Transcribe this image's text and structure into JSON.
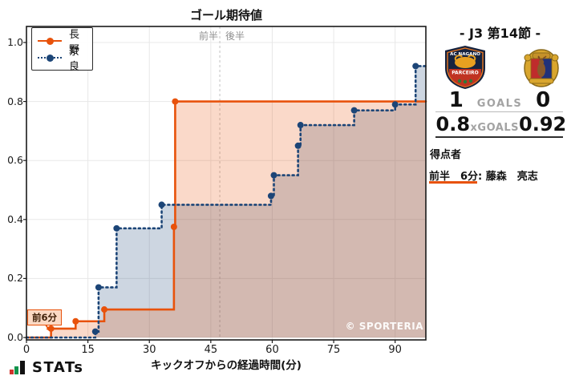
{
  "chart": {
    "title": "ゴール期待値",
    "x_label": "キックオフからの経過時間(分)",
    "half_labels": {
      "first": "前半",
      "second": "後半"
    },
    "annotation_label": "前6分",
    "watermark": "© SPORTERIA"
  },
  "chart_data": {
    "type": "line",
    "subtype": "step-after-cumulative-xg",
    "title": "ゴール期待値",
    "xlabel": "キックオフからの経過時間(分)",
    "ylabel": "",
    "xlim": [
      0,
      97.5
    ],
    "ylim": [
      0,
      1.05
    ],
    "x_ticks": [
      0,
      15,
      30,
      45,
      60,
      75,
      90
    ],
    "y_ticks": [
      0,
      0.2,
      0.4,
      0.6,
      0.8,
      1.0
    ],
    "grid": true,
    "legend_position": "upper-left",
    "halftime_x": 47.2,
    "series": [
      {
        "name": "長野",
        "color": "#e8520b",
        "fill_color": "rgba(232,82,11,0.22)",
        "style": "solid",
        "final_xg": 0.8,
        "points": [
          [
            0,
            0
          ],
          [
            6,
            0.03
          ],
          [
            12,
            0.055
          ],
          [
            19,
            0.095
          ],
          [
            36,
            0.375
          ],
          [
            36.3,
            0.8
          ],
          [
            97.5,
            0.8
          ]
        ]
      },
      {
        "name": "奈良",
        "color": "#1c4577",
        "fill_color": "rgba(28,69,119,0.22)",
        "style": "dotted",
        "final_xg": 0.92,
        "points": [
          [
            0,
            0
          ],
          [
            16.8,
            0.02
          ],
          [
            17.6,
            0.17
          ],
          [
            22,
            0.37
          ],
          [
            33,
            0.45
          ],
          [
            59.7,
            0.48
          ],
          [
            60.4,
            0.55
          ],
          [
            66.3,
            0.65
          ],
          [
            66.9,
            0.72
          ],
          [
            80,
            0.77
          ],
          [
            90,
            0.79
          ],
          [
            95,
            0.92
          ],
          [
            97.5,
            0.92
          ]
        ]
      }
    ],
    "annotation": {
      "text": "前6分",
      "x": 6,
      "y": 0.03
    }
  },
  "panel": {
    "header": "- J3 第14節 -",
    "home_crest": {
      "name": "AC NAGANO PARCEIRO",
      "top_text": "AC NAGANO",
      "band_text": "PARCEIRO"
    },
    "away_crest": {
      "name": "NARA CLUB"
    },
    "goals": {
      "home": "1",
      "label": "GOALS",
      "away": "0"
    },
    "xgoals": {
      "home": "0.8",
      "label": "xGOALS",
      "away": "0.92"
    },
    "scorers_title": "得点者",
    "scorer_time": "前半　6分",
    "scorer_rest": ": 藤森　亮志"
  },
  "footer": {
    "logo_text": "STATs"
  }
}
